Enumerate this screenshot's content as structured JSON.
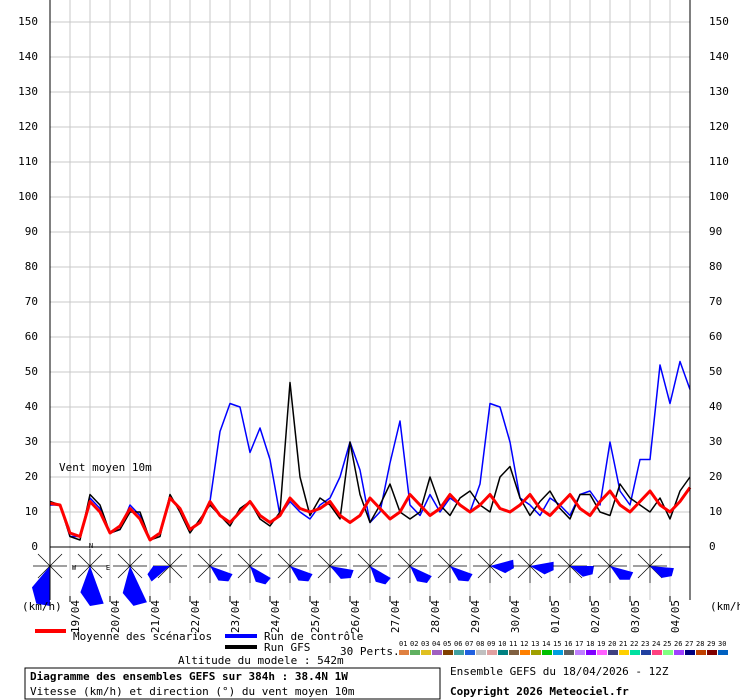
{
  "chart_data": {
    "type": "line",
    "annotation": "Vent moyen 10m",
    "y_unit_left": "(km/h)",
    "y_unit_right": "(km/h)",
    "rose_labels": [
      "N",
      "W",
      "E"
    ],
    "x": [
      0,
      6,
      12,
      18,
      24,
      30,
      36,
      42,
      48,
      54,
      60,
      66,
      72,
      78,
      84,
      90,
      96,
      102,
      108,
      114,
      120,
      126,
      132,
      138,
      144,
      150,
      156,
      162,
      168,
      174,
      180,
      186,
      192,
      198,
      204,
      210,
      216,
      222,
      228,
      234,
      240,
      246,
      252,
      258,
      264,
      270,
      276,
      282,
      288,
      294,
      300,
      306,
      312,
      318,
      324,
      330,
      336,
      342,
      348,
      354,
      360,
      366,
      372,
      378,
      384
    ],
    "xlim": [
      0,
      384
    ],
    "xticks": [
      {
        "value": 12,
        "label": "19/04"
      },
      {
        "value": 36,
        "label": "20/04"
      },
      {
        "value": 60,
        "label": "21/04"
      },
      {
        "value": 84,
        "label": "22/04"
      },
      {
        "value": 108,
        "label": "23/04"
      },
      {
        "value": 132,
        "label": "24/04"
      },
      {
        "value": 156,
        "label": "25/04"
      },
      {
        "value": 180,
        "label": "26/04"
      },
      {
        "value": 204,
        "label": "27/04"
      },
      {
        "value": 228,
        "label": "28/04"
      },
      {
        "value": 252,
        "label": "29/04"
      },
      {
        "value": 276,
        "label": "30/04"
      },
      {
        "value": 300,
        "label": "01/05"
      },
      {
        "value": 324,
        "label": "02/05"
      },
      {
        "value": 348,
        "label": "03/05"
      },
      {
        "value": 372,
        "label": "04/05"
      }
    ],
    "ylim": [
      0,
      150
    ],
    "yticks": [
      0,
      10,
      20,
      30,
      40,
      50,
      60,
      70,
      80,
      90,
      100,
      110,
      120,
      130,
      140,
      150
    ],
    "grid": true,
    "series": [
      {
        "name": "Run de contrôle",
        "color": "#0000ff",
        "values": [
          12,
          12,
          3,
          3,
          14,
          11,
          4,
          5,
          12,
          9,
          2,
          4,
          14,
          11,
          5,
          7,
          13,
          33,
          41,
          40,
          27,
          34,
          25,
          9,
          13,
          10,
          8,
          12,
          14,
          20,
          30,
          22,
          7,
          10,
          24,
          36,
          12,
          9,
          15,
          10,
          14,
          12,
          10,
          18,
          41,
          40,
          30,
          14,
          12,
          9,
          14,
          12,
          9,
          15,
          16,
          12,
          30,
          16,
          12,
          25,
          25,
          52,
          41,
          53,
          45
        ]
      },
      {
        "name": "Run GFS",
        "color": "#000000",
        "values": [
          13,
          12,
          3,
          2,
          15,
          12,
          4,
          5,
          10,
          10,
          2,
          3,
          15,
          10,
          4,
          8,
          12,
          9,
          6,
          11,
          13,
          8,
          6,
          10,
          47,
          20,
          9,
          14,
          12,
          8,
          30,
          15,
          7,
          12,
          18,
          10,
          8,
          10,
          20,
          12,
          9,
          14,
          16,
          12,
          10,
          20,
          23,
          14,
          9,
          13,
          16,
          11,
          8,
          15,
          15,
          10,
          9,
          18,
          14,
          12,
          10,
          14,
          8,
          16,
          20
        ]
      },
      {
        "name": "Moyenne des scénarios",
        "color": "#ff0000",
        "values": [
          12.5,
          12,
          4,
          3,
          13,
          10,
          4,
          6,
          11,
          8,
          2,
          4,
          14,
          11,
          5,
          7,
          13,
          9,
          7,
          10,
          13,
          9,
          7,
          9,
          14,
          11,
          10,
          11,
          13,
          9,
          7,
          9,
          14,
          11,
          8,
          10,
          15,
          12,
          9,
          11,
          15,
          12,
          10,
          12,
          15,
          11,
          10,
          12,
          15,
          11,
          9,
          12,
          15,
          11,
          9,
          13,
          16,
          12,
          10,
          13,
          16,
          12,
          10,
          13,
          17
        ]
      }
    ],
    "perturbations_title": "30 Perts.",
    "perturbations": [
      {
        "name": "01",
        "color": "#e08040"
      },
      {
        "name": "02",
        "color": "#60b060"
      },
      {
        "name": "03",
        "color": "#e0c020"
      },
      {
        "name": "04",
        "color": "#a060c0"
      },
      {
        "name": "05",
        "color": "#804000"
      },
      {
        "name": "06",
        "color": "#40a0a0"
      },
      {
        "name": "07",
        "color": "#2060e0"
      },
      {
        "name": "08",
        "color": "#c0c0c0"
      },
      {
        "name": "09",
        "color": "#e0a0a0"
      },
      {
        "name": "10",
        "color": "#008080"
      },
      {
        "name": "11",
        "color": "#806040"
      },
      {
        "name": "12",
        "color": "#ff8000"
      },
      {
        "name": "13",
        "color": "#a0a000"
      },
      {
        "name": "14",
        "color": "#00c000"
      },
      {
        "name": "15",
        "color": "#00a0e0"
      },
      {
        "name": "16",
        "color": "#606060"
      },
      {
        "name": "17",
        "color": "#c080ff"
      },
      {
        "name": "18",
        "color": "#8000ff"
      },
      {
        "name": "19",
        "color": "#ff60ff"
      },
      {
        "name": "20",
        "color": "#404080"
      },
      {
        "name": "21",
        "color": "#ffd000"
      },
      {
        "name": "22",
        "color": "#00e0a0"
      },
      {
        "name": "23",
        "color": "#2040a0"
      },
      {
        "name": "24",
        "color": "#ff4080"
      },
      {
        "name": "25",
        "color": "#80ff80"
      },
      {
        "name": "26",
        "color": "#a040ff"
      },
      {
        "name": "27",
        "color": "#000080"
      },
      {
        "name": "28",
        "color": "#c04000"
      },
      {
        "name": "29",
        "color": "#800000"
      },
      {
        "name": "30",
        "color": "#0060c0"
      }
    ],
    "altitude": "Altitude du modele : 542m",
    "title": "Diagramme des ensembles GEFS sur 384h : 38.4N 1W",
    "subtitle": "Vitesse (km/h) et direction (°) du vent moyen 10m",
    "run_info": "Ensemble GEFS du 18/04/2026 - 12Z",
    "copyright": "Copyright 2026 Meteociel.fr"
  }
}
